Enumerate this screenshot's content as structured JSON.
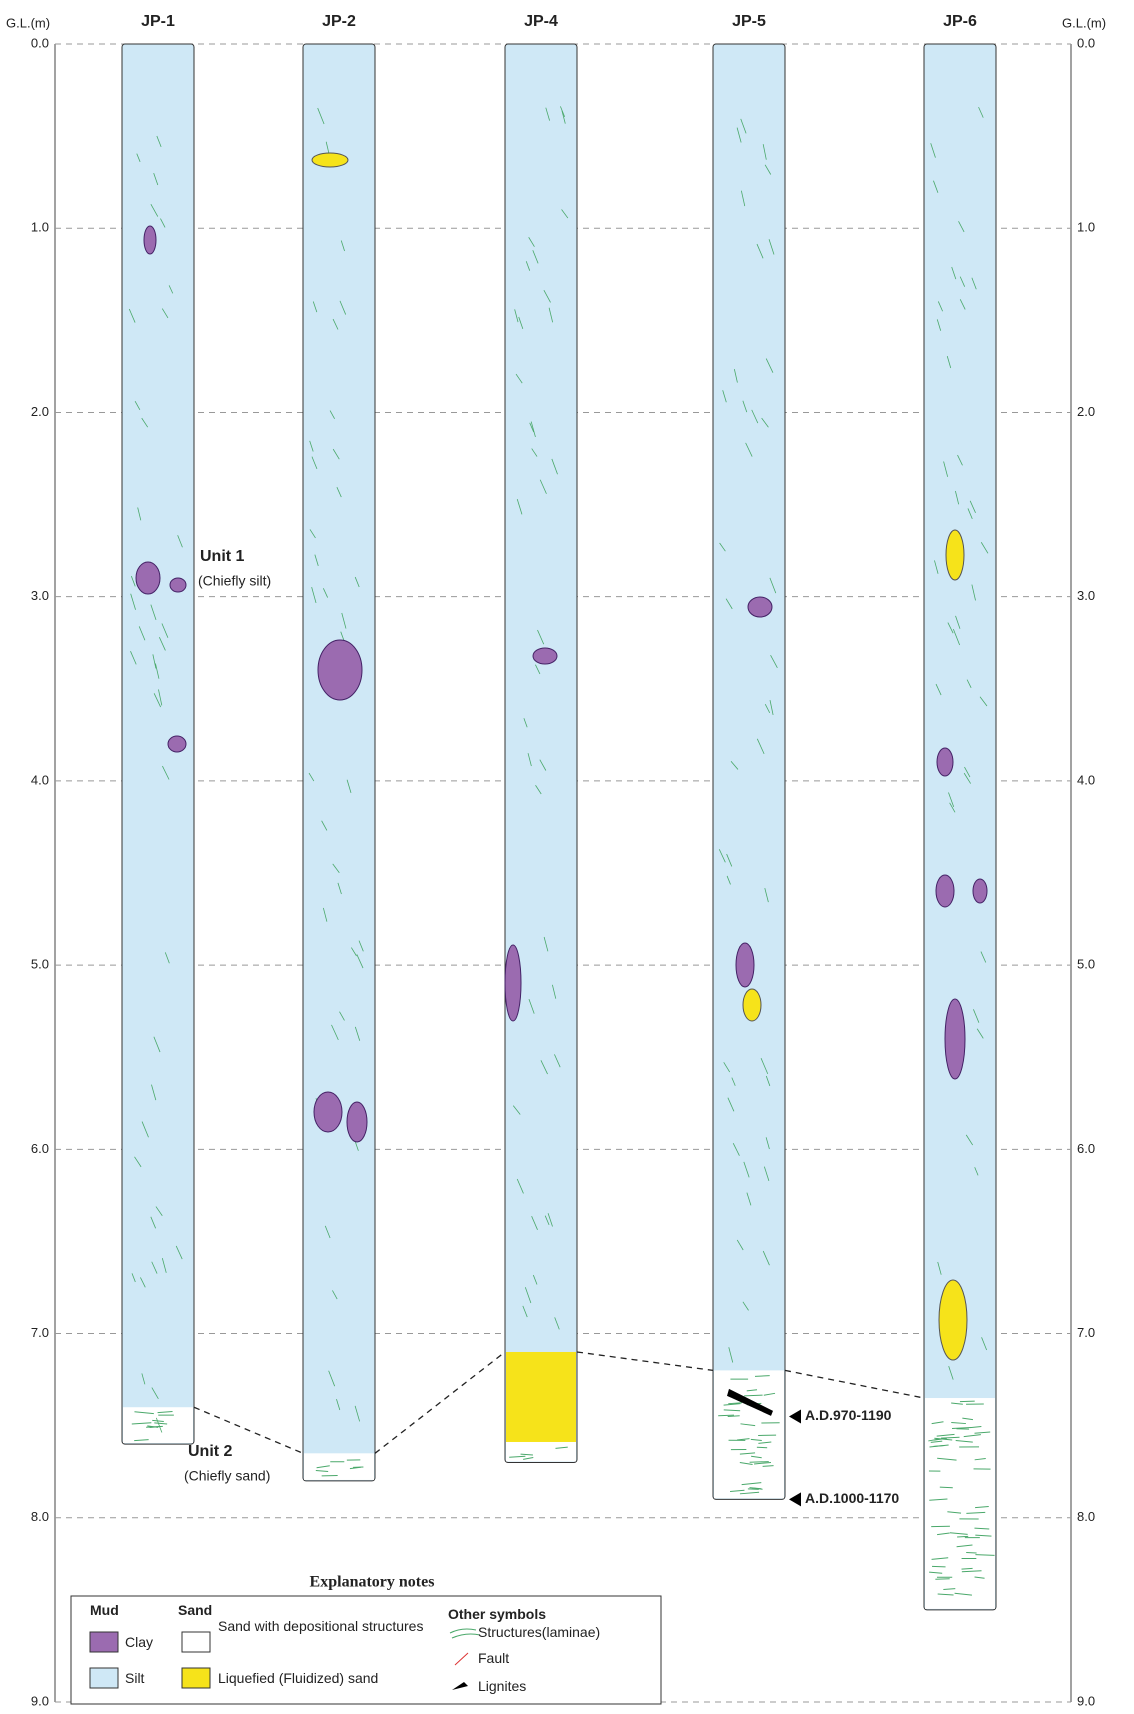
{
  "axis": {
    "label": "G.L.(m)",
    "lim": [
      0,
      9
    ],
    "ticks": [
      {
        "value": 0,
        "label": "0.0"
      },
      {
        "value": 1,
        "label": "1.0"
      },
      {
        "value": 2,
        "label": "2.0"
      },
      {
        "value": 3,
        "label": "3.0"
      },
      {
        "value": 4,
        "label": "4.0"
      },
      {
        "value": 5,
        "label": "5.0"
      },
      {
        "value": 6,
        "label": "6.0"
      },
      {
        "value": 7,
        "label": "7.0"
      },
      {
        "value": 8,
        "label": "8.0"
      },
      {
        "value": 9,
        "label": "9.0"
      }
    ]
  },
  "cores": [
    {
      "label": "JP-1",
      "bottom": 7.6,
      "unit_boundary": 7.4
    },
    {
      "label": "JP-2",
      "bottom": 7.8,
      "unit_boundary": 7.65
    },
    {
      "label": "JP-4",
      "bottom": 7.7,
      "unit_boundary": 7.1
    },
    {
      "label": "JP-5",
      "bottom": 7.9,
      "unit_boundary": 7.2
    },
    {
      "label": "JP-6",
      "bottom": 8.5,
      "unit_boundary": 7.35
    }
  ],
  "units": [
    {
      "name": "Unit 1",
      "description": "(Chiefly silt)"
    },
    {
      "name": "Unit 2",
      "description": "(Chiefly sand)"
    }
  ],
  "dates": [
    {
      "label": "A.D.970-1190",
      "depth": 7.45
    },
    {
      "label": "A.D.1000-1170",
      "depth": 7.9
    }
  ],
  "legend": {
    "title": "Explanatory notes",
    "groups": [
      {
        "heading": "Mud",
        "items": [
          "Clay",
          "Silt"
        ]
      },
      {
        "heading": "Sand",
        "items": [
          "Sand with depositional structures",
          "Liquefied (Fluidized) sand"
        ]
      },
      {
        "heading": "Other symbols",
        "items": [
          "Structures(laminae)",
          "Fault",
          "Lignites"
        ]
      }
    ]
  }
}
